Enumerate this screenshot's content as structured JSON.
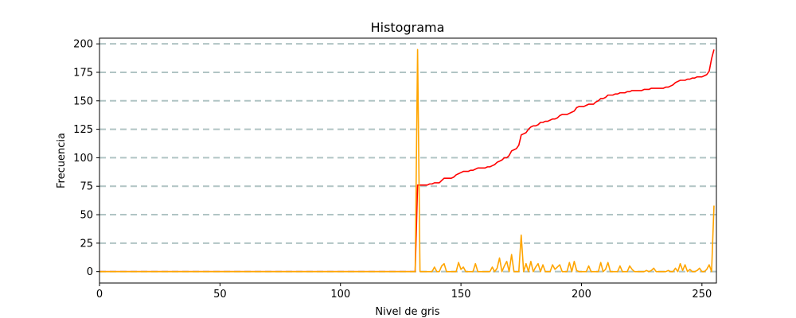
{
  "chart_data": {
    "type": "line",
    "title": "Histograma",
    "xlabel": "Nivel de gris",
    "ylabel": "Frecuencia",
    "xlim": [
      0,
      256
    ],
    "ylim": [
      -10,
      205
    ],
    "xticks": [
      0,
      50,
      100,
      150,
      200,
      250
    ],
    "yticks": [
      0,
      25,
      50,
      75,
      100,
      125,
      150,
      175,
      200
    ],
    "grid": "horizontal dashed",
    "colors": {
      "grid": "#b0c4c4",
      "cumulative": "#ff0000",
      "histogram": "#ffa500"
    },
    "series": [
      {
        "x": [
          0,
          131,
          132,
          133,
          134,
          135,
          136,
          137,
          138,
          139,
          140,
          141,
          142,
          143,
          144,
          145,
          146,
          147,
          148,
          149,
          150,
          151,
          152,
          153,
          154,
          155,
          156,
          157,
          158,
          159,
          160,
          161,
          162,
          163,
          164,
          165,
          166,
          167,
          168,
          169,
          170,
          171,
          172,
          173,
          174,
          175,
          176,
          177,
          178,
          179,
          180,
          181,
          182,
          183,
          184,
          185,
          186,
          187,
          188,
          189,
          190,
          191,
          192,
          193,
          194,
          195,
          196,
          197,
          198,
          199,
          200,
          201,
          202,
          203,
          204,
          205,
          206,
          207,
          208,
          209,
          210,
          211,
          212,
          213,
          214,
          215,
          216,
          217,
          218,
          219,
          220,
          221,
          222,
          223,
          224,
          225,
          226,
          227,
          228,
          229,
          230,
          231,
          232,
          233,
          234,
          235,
          236,
          237,
          238,
          239,
          240,
          241,
          242,
          243,
          244,
          245,
          246,
          247,
          248,
          249,
          250,
          251,
          252,
          253,
          254,
          255
        ],
        "values": [
          0,
          0,
          76,
          76,
          76,
          76,
          76,
          77,
          77,
          78,
          78,
          78,
          80,
          82,
          82,
          82,
          82,
          83,
          85,
          86,
          87,
          88,
          88,
          88,
          89,
          89,
          90,
          91,
          91,
          91,
          91,
          92,
          92,
          93,
          94,
          96,
          97,
          98,
          100,
          100,
          102,
          106,
          107,
          108,
          111,
          120,
          121,
          122,
          125,
          127,
          128,
          128,
          129,
          131,
          131,
          132,
          132,
          133,
          134,
          134,
          135,
          137,
          138,
          138,
          138,
          139,
          140,
          141,
          144,
          145,
          145,
          145,
          146,
          147,
          147,
          147,
          149,
          150,
          152,
          152,
          153,
          155,
          155,
          155,
          156,
          156,
          157,
          157,
          157,
          158,
          158,
          159,
          159,
          159,
          159,
          159,
          160,
          160,
          160,
          161,
          161,
          161,
          161,
          161,
          161,
          162,
          162,
          163,
          164,
          166,
          167,
          168,
          168,
          168,
          169,
          169,
          170,
          170,
          171,
          171,
          171,
          172,
          173,
          176,
          187,
          195
        ]
      },
      {
        "x": [
          0,
          130,
          131,
          132,
          133,
          134,
          135,
          136,
          137,
          138,
          139,
          140,
          141,
          142,
          143,
          144,
          145,
          146,
          147,
          148,
          149,
          150,
          151,
          152,
          153,
          154,
          155,
          156,
          157,
          158,
          159,
          160,
          161,
          162,
          163,
          164,
          165,
          166,
          167,
          168,
          169,
          170,
          171,
          172,
          173,
          174,
          175,
          176,
          177,
          178,
          179,
          180,
          181,
          182,
          183,
          184,
          185,
          186,
          187,
          188,
          189,
          190,
          191,
          192,
          193,
          194,
          195,
          196,
          197,
          198,
          199,
          200,
          201,
          202,
          203,
          204,
          205,
          206,
          207,
          208,
          209,
          210,
          211,
          212,
          213,
          214,
          215,
          216,
          217,
          218,
          219,
          220,
          221,
          222,
          223,
          224,
          225,
          226,
          227,
          228,
          229,
          230,
          231,
          232,
          233,
          234,
          235,
          236,
          237,
          238,
          239,
          240,
          241,
          242,
          243,
          244,
          245,
          246,
          247,
          248,
          249,
          250,
          251,
          252,
          253,
          254,
          255
        ],
        "values": [
          0,
          0,
          0,
          195,
          0,
          0,
          0,
          0,
          0,
          0,
          4,
          0,
          0,
          5,
          7,
          0,
          0,
          0,
          0,
          0,
          8,
          2,
          4,
          0,
          0,
          0,
          0,
          7,
          0,
          0,
          0,
          0,
          0,
          0,
          4,
          0,
          3,
          12,
          0,
          5,
          9,
          0,
          15,
          0,
          0,
          0,
          32,
          0,
          7,
          0,
          9,
          0,
          4,
          7,
          0,
          6,
          0,
          0,
          0,
          6,
          2,
          4,
          6,
          0,
          0,
          0,
          8,
          0,
          9,
          1,
          0,
          0,
          0,
          0,
          5,
          0,
          0,
          0,
          0,
          8,
          0,
          2,
          8,
          0,
          0,
          0,
          0,
          5,
          0,
          0,
          0,
          5,
          2,
          0,
          0,
          0,
          0,
          0,
          1,
          0,
          1,
          3,
          0,
          0,
          0,
          0,
          0,
          1,
          0,
          0,
          3,
          0,
          7,
          1,
          6,
          0,
          2,
          0,
          0,
          1,
          3,
          0,
          0,
          2,
          6,
          0,
          58
        ]
      }
    ]
  }
}
